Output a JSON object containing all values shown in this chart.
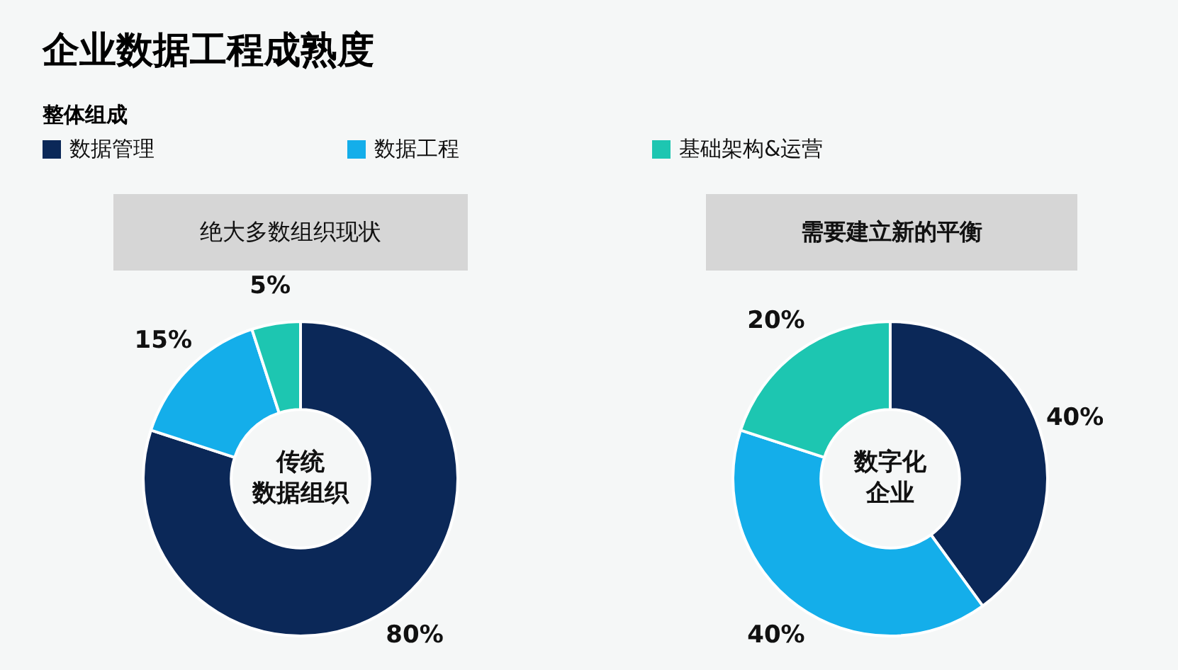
{
  "chart_data": [
    {
      "type": "donut",
      "title": "企业数据工程成熟度",
      "legend_title": "整体组成",
      "subtitle": "绝大多数组织现状",
      "categories": [
        "数据管理",
        "数据工程",
        "基础架构&运营"
      ],
      "values": [
        80,
        15,
        5
      ],
      "colors": [
        "#0b2858",
        "#14aeea",
        "#1dc6b1"
      ],
      "value_labels": [
        "80%",
        "15%",
        "5%"
      ],
      "annotations": [
        "传统",
        "数据组织"
      ],
      "legend": "top"
    },
    {
      "type": "donut",
      "subtitle": "需要建立新的平衡",
      "categories": [
        null,
        null,
        null
      ],
      "values": [
        40,
        40,
        20
      ],
      "colors": [
        "#0b2858",
        "#14aeea",
        "#1dc6b1"
      ],
      "value_labels": [
        "40%",
        "40%",
        "20%"
      ],
      "annotations": [
        "数字化",
        "企业"
      ]
    }
  ]
}
